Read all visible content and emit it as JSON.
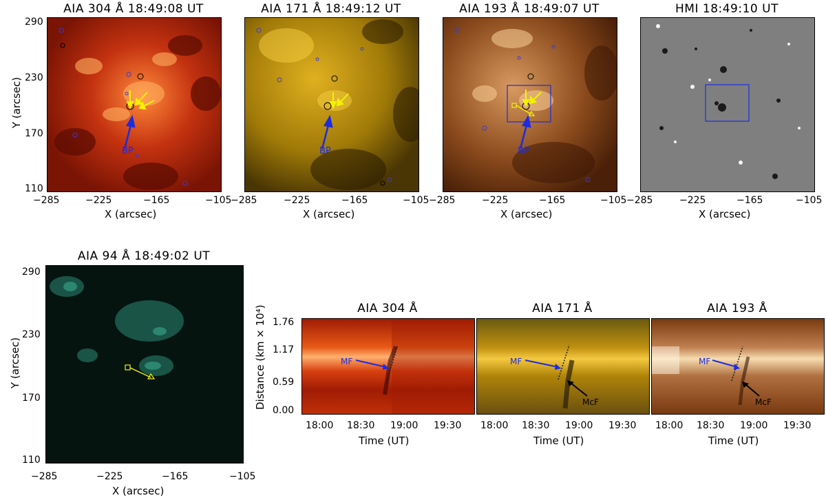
{
  "top_row": {
    "titles": [
      "AIA 304 Å 18:49:08 UT",
      "AIA 171 Å 18:49:12 UT",
      "AIA 193 Å 18:49:07 UT",
      "HMI 18:49:10 UT"
    ],
    "y_label": "Y (arcsec)",
    "x_label": "X (arcsec)",
    "y_ticks": [
      "290",
      "230",
      "170",
      "110"
    ],
    "x_ticks_1": [
      "−285",
      "−225",
      "−165",
      "−105"
    ],
    "x_ticks_2": [
      "−285",
      "−225",
      "−165",
      "−105"
    ],
    "x_ticks_3": [
      "−285",
      "−225",
      "−165",
      "−105"
    ],
    "x_ticks_4": [
      "−285",
      "−225",
      "−165",
      "−105"
    ],
    "bp_label": "BP"
  },
  "bottom_left": {
    "title": "AIA 94 Å 18:49:02 UT",
    "y_label": "Y (arcsec)",
    "x_label": "X (arcsec)",
    "y_ticks": [
      "290",
      "230",
      "170",
      "110"
    ],
    "x_ticks": [
      "−285",
      "−225",
      "−165",
      "−105"
    ]
  },
  "time_slices": {
    "titles": [
      "AIA 304 Å",
      "AIA 171 Å",
      "AIA 193 Å"
    ],
    "y_label": "Distance (km × 10⁴)",
    "x_label": "Time (UT)",
    "y_ticks": [
      "1.76",
      "1.17",
      "0.59",
      "0.00"
    ],
    "x_ticks": [
      "18:00",
      "18:30",
      "19:00",
      "19:30"
    ],
    "annotations": {
      "mf": "MF",
      "mcf": "McF"
    }
  },
  "colors": {
    "aia304": "#b02408",
    "aia171": "#b08a10",
    "aia193": "#8a4a1c",
    "hmi": "#808080",
    "aia94": "#061410",
    "contour_blue": "#3a3ad8",
    "arrow_yellow": "#f2f200",
    "arrow_blue": "#1c2ce0"
  },
  "chart_data": [
    {
      "type": "heatmap",
      "title": "AIA 304 Å 18:49:08 UT",
      "xlabel": "X (arcsec)",
      "ylabel": "Y (arcsec)",
      "xlim": [
        -285,
        -105
      ],
      "ylim": [
        110,
        290
      ]
    },
    {
      "type": "heatmap",
      "title": "AIA 171 Å 18:49:12 UT",
      "xlabel": "X (arcsec)",
      "ylabel": "Y (arcsec)",
      "xlim": [
        -285,
        -105
      ],
      "ylim": [
        110,
        290
      ]
    },
    {
      "type": "heatmap",
      "title": "AIA 193 Å 18:49:07 UT",
      "xlabel": "X (arcsec)",
      "ylabel": "Y (arcsec)",
      "xlim": [
        -285,
        -105
      ],
      "ylim": [
        110,
        290
      ]
    },
    {
      "type": "heatmap",
      "title": "HMI 18:49:10 UT",
      "xlabel": "X (arcsec)",
      "ylabel": "Y (arcsec)",
      "xlim": [
        -285,
        -105
      ],
      "ylim": [
        110,
        290
      ]
    },
    {
      "type": "heatmap",
      "title": "AIA 94 Å 18:49:02 UT",
      "xlabel": "X (arcsec)",
      "ylabel": "Y (arcsec)",
      "xlim": [
        -285,
        -105
      ],
      "ylim": [
        110,
        290
      ]
    },
    {
      "type": "heatmap",
      "title": "AIA 304 Å",
      "xlabel": "Time (UT)",
      "ylabel": "Distance (km × 10⁴)",
      "ylim": [
        0,
        1.76
      ]
    },
    {
      "type": "heatmap",
      "title": "AIA 171 Å",
      "xlabel": "Time (UT)",
      "ylabel": "Distance (km × 10⁴)",
      "ylim": [
        0,
        1.76
      ]
    },
    {
      "type": "heatmap",
      "title": "AIA 193 Å",
      "xlabel": "Time (UT)",
      "ylabel": "Distance (km × 10⁴)",
      "ylim": [
        0,
        1.76
      ]
    }
  ]
}
